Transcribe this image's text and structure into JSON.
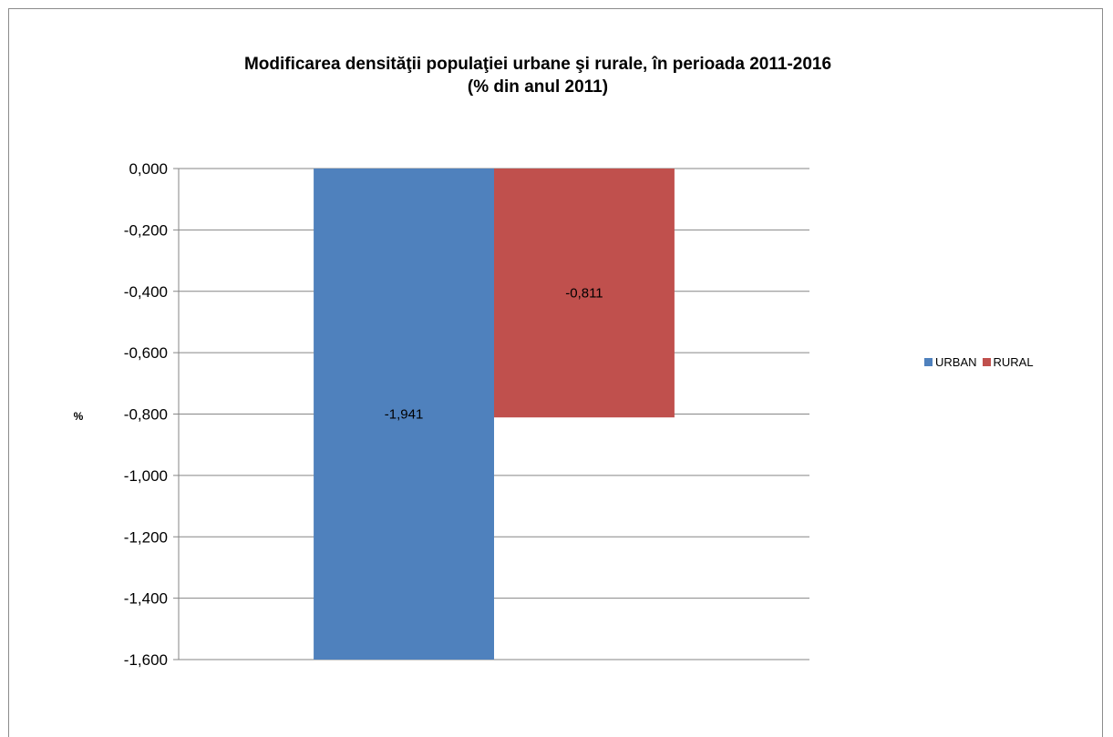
{
  "chart_data": {
    "type": "bar",
    "title": "Modificarea  densităţii populaţiei urbane şi rurale, în perioada 2011-2016",
    "subtitle": "(% din anul 2011)",
    "ylabel": "%",
    "xlabel": "",
    "ylim": [
      -1.6,
      0
    ],
    "yticks": [
      0,
      -0.2,
      -0.4,
      -0.6,
      -0.8,
      -1.0,
      -1.2,
      -1.4,
      -1.6
    ],
    "ytick_labels": [
      "0,000",
      "-0,200",
      "-0,400",
      "-0,600",
      "-0,800",
      "-1,000",
      "-1,200",
      "-1,400",
      "-1,600"
    ],
    "grid": true,
    "legend_position": "right",
    "series": [
      {
        "name": "URBAN",
        "value": -1.941,
        "label": "-1,941",
        "color": "#4f81bd"
      },
      {
        "name": "RURAL",
        "value": -0.811,
        "label": "-0,811",
        "color": "#c0504d"
      }
    ]
  }
}
